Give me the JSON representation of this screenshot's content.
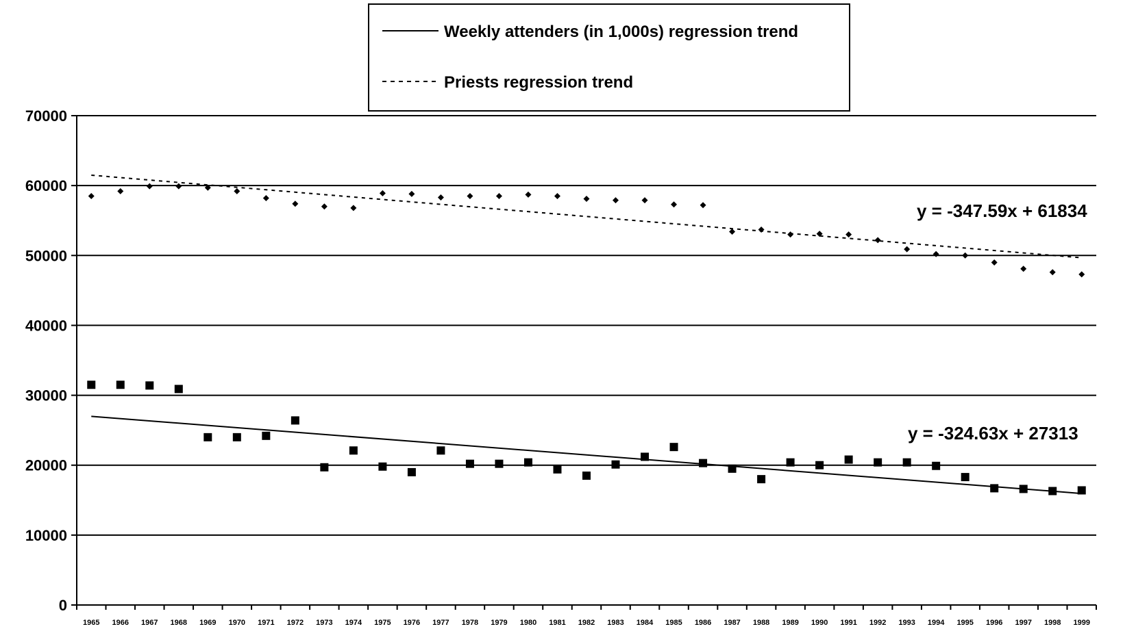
{
  "chart_data": {
    "type": "scatter",
    "title": "",
    "xlabel": "",
    "ylabel": "",
    "ylim": [
      0,
      70000
    ],
    "y_ticks": [
      "0",
      "10000",
      "20000",
      "30000",
      "40000",
      "50000",
      "60000",
      "70000"
    ],
    "categories": [
      "1965",
      "1966",
      "1967",
      "1968",
      "1969",
      "1970",
      "1971",
      "1972",
      "1973",
      "1974",
      "1975",
      "1976",
      "1977",
      "1978",
      "1979",
      "1980",
      "1981",
      "1982",
      "1983",
      "1984",
      "1985",
      "1986",
      "1987",
      "1988",
      "1989",
      "1990",
      "1991",
      "1992",
      "1993",
      "1994",
      "1995",
      "1996",
      "1997",
      "1998",
      "1999"
    ],
    "grid": "horizontal",
    "legend_position": "top-center",
    "series": [
      {
        "key": "priests",
        "marker": "diamond",
        "values": [
          58500,
          59200,
          59900,
          59900,
          59700,
          59200,
          58200,
          57400,
          57000,
          56800,
          58900,
          58800,
          58300,
          58500,
          58500,
          58700,
          58500,
          58100,
          57900,
          57900,
          57300,
          57200,
          53400,
          53700,
          53000,
          53100,
          53000,
          52200,
          50900,
          50200,
          50000,
          49000,
          48100,
          47600,
          47300
        ]
      },
      {
        "key": "attenders",
        "marker": "square",
        "values": [
          31500,
          31500,
          31400,
          30900,
          24000,
          24000,
          24200,
          26400,
          19700,
          22100,
          19800,
          19000,
          22100,
          20200,
          20200,
          20400,
          19400,
          18500,
          20100,
          21200,
          22600,
          20300,
          19500,
          18000,
          20400,
          20000,
          20800,
          20400,
          20400,
          19900,
          18300,
          16700,
          16600,
          16300,
          16400
        ]
      }
    ],
    "trendlines": [
      {
        "series": "priests",
        "style": "dotted",
        "slope": -347.59,
        "intercept": 61834,
        "equation": "y = -347.59x + 61834",
        "legend_label": "Priests regression trend"
      },
      {
        "series": "attenders",
        "style": "solid",
        "slope": -324.63,
        "intercept": 27313,
        "equation": "y = -324.63x + 27313",
        "legend_label": "Weekly attenders (in 1,000s) regression trend"
      }
    ]
  }
}
